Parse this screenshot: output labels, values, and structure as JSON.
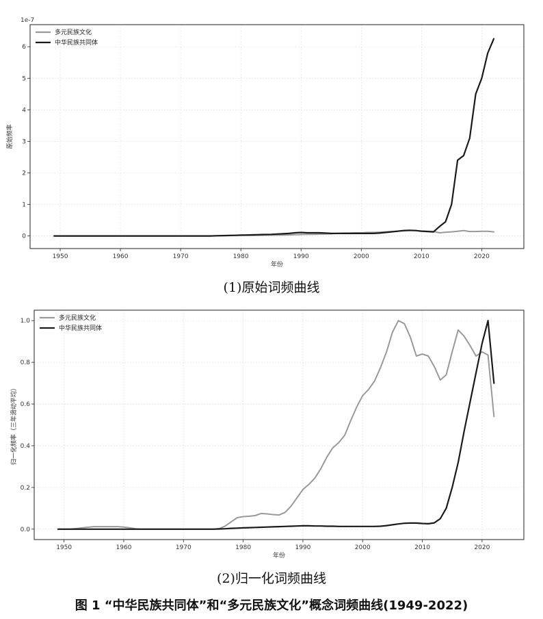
{
  "figure_caption": "图 1 “中华民族共同体”和“多元民族文化”概念词频曲线(1949-2022)",
  "colors": {
    "multi": "#999999",
    "community": "#1a1a1a"
  },
  "chart_data": [
    {
      "type": "line",
      "caption": "(1)原始词频曲线",
      "xlabel": "年份",
      "ylabel": "原始频率",
      "offset_text": "1e-7",
      "xlim": [
        1945,
        2027
      ],
      "ylim": [
        -0.4,
        6.7
      ],
      "xticks": [
        1950,
        1960,
        1970,
        1980,
        1990,
        2000,
        2010,
        2020
      ],
      "yticks": [
        0,
        1,
        2,
        3,
        4,
        5,
        6
      ],
      "grid": true,
      "legend": "top-left",
      "x": [
        1949,
        1950,
        1951,
        1952,
        1953,
        1954,
        1955,
        1956,
        1957,
        1958,
        1959,
        1960,
        1961,
        1962,
        1963,
        1964,
        1965,
        1966,
        1967,
        1968,
        1969,
        1970,
        1971,
        1972,
        1973,
        1974,
        1975,
        1976,
        1977,
        1978,
        1979,
        1980,
        1981,
        1982,
        1983,
        1984,
        1985,
        1986,
        1987,
        1988,
        1989,
        1990,
        1991,
        1992,
        1993,
        1994,
        1995,
        1996,
        1997,
        1998,
        1999,
        2000,
        2001,
        2002,
        2003,
        2004,
        2005,
        2006,
        2007,
        2008,
        2009,
        2010,
        2011,
        2012,
        2013,
        2014,
        2015,
        2016,
        2017,
        2018,
        2019,
        2020,
        2021,
        2022
      ],
      "series": [
        {
          "name": "多元民族文化",
          "values": [
            0,
            0,
            0,
            0,
            0,
            0,
            0,
            0,
            0,
            0,
            0,
            0,
            0,
            0,
            0,
            0,
            0,
            0,
            0,
            0,
            0,
            0,
            0,
            0,
            0,
            0,
            0,
            0.005,
            0.01,
            0.01,
            0.015,
            0.02,
            0.02,
            0.02,
            0.02,
            0.025,
            0.025,
            0.025,
            0.03,
            0.035,
            0.04,
            0.045,
            0.05,
            0.05,
            0.055,
            0.06,
            0.07,
            0.08,
            0.09,
            0.09,
            0.1,
            0.1,
            0.11,
            0.11,
            0.12,
            0.13,
            0.14,
            0.15,
            0.16,
            0.17,
            0.17,
            0.16,
            0.15,
            0.14,
            0.1,
            0.12,
            0.13,
            0.15,
            0.17,
            0.14,
            0.14,
            0.15,
            0.15,
            0.13
          ]
        },
        {
          "name": "中华民族共同体",
          "values": [
            0,
            0,
            0,
            0,
            0,
            0,
            0,
            0,
            0,
            0,
            0,
            0,
            0,
            0,
            0,
            0,
            0,
            0,
            0,
            0,
            0,
            0,
            0,
            0,
            0,
            0,
            0,
            0.005,
            0.01,
            0.015,
            0.02,
            0.025,
            0.03,
            0.035,
            0.04,
            0.045,
            0.05,
            0.06,
            0.07,
            0.08,
            0.1,
            0.11,
            0.1,
            0.1,
            0.1,
            0.09,
            0.08,
            0.08,
            0.08,
            0.08,
            0.08,
            0.08,
            0.08,
            0.08,
            0.09,
            0.11,
            0.13,
            0.15,
            0.17,
            0.18,
            0.17,
            0.15,
            0.14,
            0.13,
            0.3,
            0.45,
            1.0,
            2.4,
            2.55,
            3.1,
            4.5,
            5.0,
            5.8,
            6.25
          ]
        }
      ]
    },
    {
      "type": "line",
      "caption": "(2)归一化词频曲线",
      "xlabel": "年份",
      "ylabel": "归一化频率（三年滑动平均）",
      "xlim": [
        1945,
        2027
      ],
      "ylim": [
        -0.05,
        1.05
      ],
      "xticks": [
        1950,
        1960,
        1970,
        1980,
        1990,
        2000,
        2010,
        2020
      ],
      "yticks": [
        0.0,
        0.2,
        0.4,
        0.6,
        0.8,
        1.0
      ],
      "grid": true,
      "legend": "top-left",
      "x": [
        1949,
        1950,
        1951,
        1952,
        1953,
        1954,
        1955,
        1956,
        1957,
        1958,
        1959,
        1960,
        1961,
        1962,
        1963,
        1964,
        1965,
        1966,
        1967,
        1968,
        1969,
        1970,
        1971,
        1972,
        1973,
        1974,
        1975,
        1976,
        1977,
        1978,
        1979,
        1980,
        1981,
        1982,
        1983,
        1984,
        1985,
        1986,
        1987,
        1988,
        1989,
        1990,
        1991,
        1992,
        1993,
        1994,
        1995,
        1996,
        1997,
        1998,
        1999,
        2000,
        2001,
        2002,
        2003,
        2004,
        2005,
        2006,
        2007,
        2008,
        2009,
        2010,
        2011,
        2012,
        2013,
        2014,
        2015,
        2016,
        2017,
        2018,
        2019,
        2020,
        2021,
        2022
      ],
      "series": [
        {
          "name": "多元民族文化",
          "values": [
            0,
            0,
            0,
            0.003,
            0.006,
            0.009,
            0.012,
            0.012,
            0.012,
            0.012,
            0.012,
            0.01,
            0.006,
            0.002,
            0,
            0,
            0,
            0,
            0,
            0,
            0,
            0,
            0,
            0,
            0,
            0,
            0,
            0.003,
            0.015,
            0.035,
            0.055,
            0.06,
            0.062,
            0.065,
            0.075,
            0.073,
            0.07,
            0.068,
            0.08,
            0.11,
            0.15,
            0.19,
            0.215,
            0.245,
            0.29,
            0.345,
            0.39,
            0.415,
            0.45,
            0.52,
            0.585,
            0.64,
            0.67,
            0.71,
            0.775,
            0.85,
            0.945,
            1.0,
            0.985,
            0.92,
            0.83,
            0.84,
            0.83,
            0.78,
            0.715,
            0.74,
            0.85,
            0.955,
            0.925,
            0.88,
            0.83,
            0.85,
            0.835,
            0.54
          ]
        },
        {
          "name": "中华民族共同体",
          "values": [
            0,
            0,
            0,
            0,
            0,
            0,
            0,
            0,
            0,
            0,
            0,
            0,
            0,
            0,
            0,
            0,
            0,
            0,
            0,
            0,
            0,
            0,
            0,
            0,
            0,
            0,
            0,
            0.001,
            0.002,
            0.004,
            0.005,
            0.006,
            0.007,
            0.008,
            0.009,
            0.01,
            0.011,
            0.012,
            0.013,
            0.014,
            0.015,
            0.016,
            0.016,
            0.015,
            0.015,
            0.014,
            0.014,
            0.013,
            0.013,
            0.013,
            0.013,
            0.013,
            0.013,
            0.013,
            0.014,
            0.017,
            0.021,
            0.025,
            0.028,
            0.029,
            0.029,
            0.027,
            0.026,
            0.03,
            0.05,
            0.1,
            0.2,
            0.32,
            0.47,
            0.61,
            0.75,
            0.89,
            1.0,
            0.7
          ]
        }
      ]
    }
  ]
}
